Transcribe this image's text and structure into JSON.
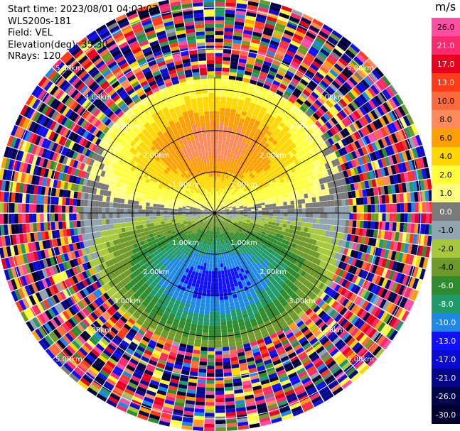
{
  "header": {
    "start_time": "Start time: 2023/08/01 04:03:07",
    "instrument": "WLS200s-181",
    "field": "Field: VEL",
    "elevation": "Elevation(deg): 35.30",
    "nrays": "NRays: 120"
  },
  "colorbar": {
    "unit": "m/s",
    "levels": [
      {
        "label": "26.0",
        "color": "#ff4fa3"
      },
      {
        "label": "21.0",
        "color": "#ff2a6e"
      },
      {
        "label": "17.0",
        "color": "#e8001e"
      },
      {
        "label": "13.0",
        "color": "#ff3b1a"
      },
      {
        "label": "10.0",
        "color": "#ff6a3d"
      },
      {
        "label": "8.0",
        "color": "#ff8a5a"
      },
      {
        "label": "6.0",
        "color": "#ffa000"
      },
      {
        "label": "4.0",
        "color": "#ffd700"
      },
      {
        "label": "2.0",
        "color": "#ffff3c"
      },
      {
        "label": "1.0",
        "color": "#ffff80"
      },
      {
        "label": "0.0",
        "color": "#7a7a7a"
      },
      {
        "label": "-1.0",
        "color": "#8fa3b0"
      },
      {
        "label": "-2.0",
        "color": "#a8c83c"
      },
      {
        "label": "-4.0",
        "color": "#6e9a2a"
      },
      {
        "label": "-6.0",
        "color": "#2e8b2e"
      },
      {
        "label": "-8.0",
        "color": "#1f9a6a"
      },
      {
        "label": "-10.0",
        "color": "#1e88e5"
      },
      {
        "label": "-13.0",
        "color": "#1010ff"
      },
      {
        "label": "-17.0",
        "color": "#0a0ad0"
      },
      {
        "label": "-21.0",
        "color": "#06068a"
      },
      {
        "label": "-26.0",
        "color": "#03034a"
      },
      {
        "label": "-30.0",
        "color": "#000030"
      }
    ]
  },
  "chart_data": {
    "type": "heatmap",
    "projection": "polar",
    "field": "VEL",
    "units": "m/s",
    "nrays": 120,
    "range_rings_km": [
      1.0,
      2.0,
      3.0,
      4.0,
      5.0
    ],
    "range_labels": [
      "1.00km",
      "2.00km",
      "3.00km",
      "4.00km",
      "5.00km"
    ],
    "max_range_km": 5.3,
    "radial_lines_deg": [
      0,
      30,
      60,
      90,
      120,
      150,
      180,
      210,
      240,
      270,
      300,
      330
    ],
    "pattern": {
      "positive_max_azimuth_deg": 0,
      "negative_max_azimuth_deg": 180,
      "peak_positive_ms": 9.0,
      "peak_negative_ms": -11.0,
      "structure": "dipole, positive (receding) to north, negative (approaching) to south; noise beyond ~3.3 km"
    }
  }
}
